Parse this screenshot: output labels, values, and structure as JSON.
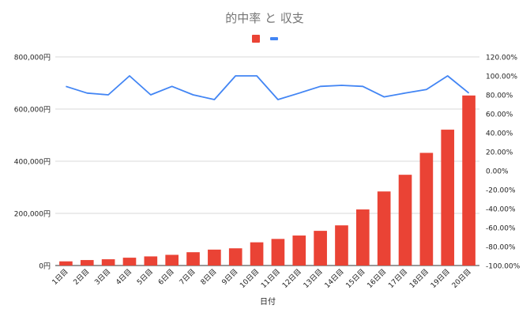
{
  "chart_data": {
    "type": "bar+line",
    "title": "的中率 と 収支",
    "xlabel": "日付",
    "ylabel": "",
    "y2label": "",
    "categories": [
      "1日目",
      "2日目",
      "3日目",
      "4日目",
      "5日目",
      "6日目",
      "7日目",
      "8日目",
      "9日目",
      "10日目",
      "11日目",
      "12日目",
      "13日目",
      "14日目",
      "15日目",
      "16日目",
      "17日目",
      "18日目",
      "19日目",
      "20日目"
    ],
    "series": [
      {
        "type": "bar",
        "axis": "left",
        "color": "#ea4335",
        "values": [
          16000,
          21000,
          24000,
          30000,
          35000,
          41000,
          51000,
          61000,
          66000,
          89000,
          102000,
          115000,
          133000,
          154000,
          215000,
          284000,
          348000,
          432000,
          521000,
          652000
        ]
      },
      {
        "type": "line",
        "axis": "right",
        "color": "#4285f4",
        "values": [
          88.9,
          81.8,
          80.0,
          100.0,
          80.0,
          88.9,
          80.0,
          75.0,
          100.0,
          100.0,
          75.0,
          81.8,
          88.9,
          90.0,
          88.9,
          77.8,
          81.8,
          85.7,
          100.0,
          81.8
        ]
      }
    ],
    "ylim": [
      0,
      800000
    ],
    "y_ticks": [
      "0円",
      "200,000円",
      "400,000円",
      "600,000円",
      "800,000円"
    ],
    "y2lim": [
      -100,
      120
    ],
    "y2_ticks": [
      "-100.00%",
      "-80.00%",
      "-60.00%",
      "-40.00%",
      "-20.00%",
      "0.00%",
      "20.00%",
      "40.00%",
      "60.00%",
      "80.00%",
      "100.00%",
      "120.00%"
    ],
    "grid": true,
    "legend_position": "top"
  }
}
